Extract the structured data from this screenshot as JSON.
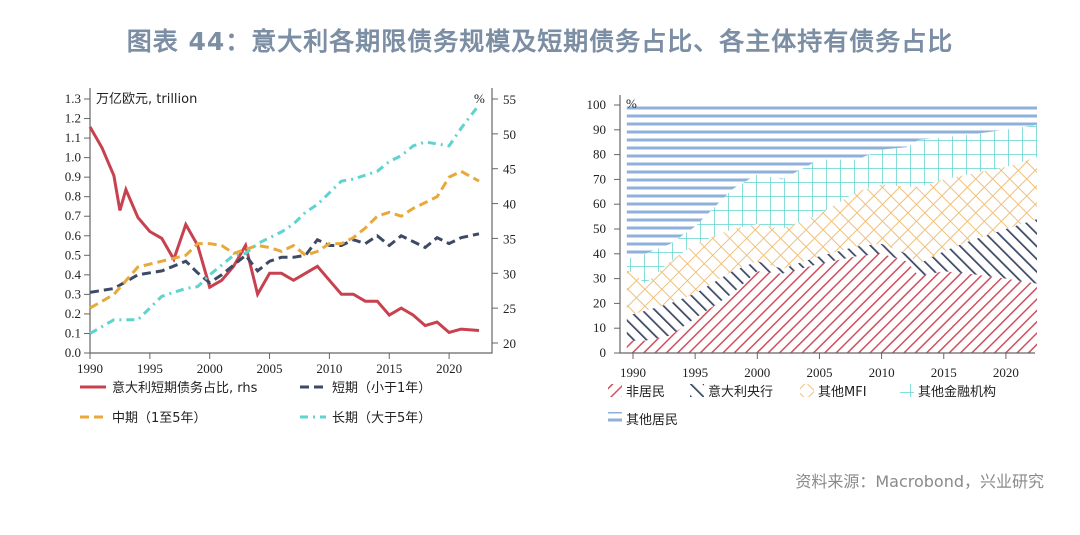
{
  "title": "图表 44：意大利各期限债务规模及短期债务占比、各主体持有债务占比",
  "source": "资料来源：Macrobond，兴业研究",
  "chart_data": [
    {
      "type": "line",
      "unit_left": "万亿欧元, trillion",
      "unit_right": "%",
      "xlim": [
        1990,
        2023
      ],
      "ylim_left": [
        0,
        1.3
      ],
      "ylim_right": [
        20,
        55
      ],
      "x_ticks": [
        "1990",
        "1995",
        "2000",
        "2005",
        "2010",
        "2015",
        "2020"
      ],
      "y_ticks_left": [
        "0.0",
        "0.1",
        "0.2",
        "0.3",
        "0.4",
        "0.5",
        "0.6",
        "0.7",
        "0.8",
        "0.9",
        "1.0",
        "1.1",
        "1.2",
        "1.3"
      ],
      "y_ticks_right": [
        "20",
        "25",
        "30",
        "35",
        "40",
        "45",
        "50",
        "55"
      ],
      "series": [
        {
          "name": "意大利短期债务占比, rhs",
          "axis": "right",
          "color": "#c8414f",
          "dash": "solid",
          "x": [
            1990,
            1991,
            1992,
            1992.5,
            1993,
            1994,
            1995,
            1996,
            1997,
            1998,
            1999,
            2000,
            2001,
            2002,
            2003,
            2004,
            2005,
            2006,
            2007,
            2008,
            2009,
            2010,
            2011,
            2012,
            2013,
            2014,
            2015,
            2016,
            2017,
            2018,
            2019,
            2020,
            2021,
            2022.5
          ],
          "y": [
            51,
            48,
            44,
            39,
            42,
            38,
            36,
            35,
            32,
            37,
            34,
            28,
            29,
            31,
            34,
            27,
            30,
            30,
            29,
            30,
            31,
            29,
            27,
            27,
            26,
            26,
            24,
            25,
            24,
            22.5,
            23,
            21.5,
            22,
            21.8
          ]
        },
        {
          "name": "短期（小于1年）",
          "axis": "left",
          "color": "#3d4a66",
          "dash": "dash",
          "x": [
            1990,
            1992,
            1994,
            1996,
            1998,
            1999,
            2000,
            2001,
            2002,
            2003,
            2004,
            2005,
            2006,
            2007,
            2008,
            2009,
            2010,
            2011,
            2012,
            2013,
            2014,
            2015,
            2016,
            2017,
            2018,
            2019,
            2020,
            2021,
            2022.5
          ],
          "y": [
            0.31,
            0.33,
            0.4,
            0.42,
            0.47,
            0.41,
            0.36,
            0.4,
            0.45,
            0.5,
            0.42,
            0.47,
            0.49,
            0.49,
            0.5,
            0.58,
            0.55,
            0.55,
            0.58,
            0.56,
            0.6,
            0.55,
            0.6,
            0.57,
            0.54,
            0.59,
            0.56,
            0.59,
            0.61
          ]
        },
        {
          "name": "中期（1至5年）",
          "axis": "left",
          "color": "#e8a93a",
          "dash": "dash",
          "x": [
            1990,
            1992,
            1994,
            1996,
            1998,
            1999,
            2000,
            2001,
            2002,
            2003,
            2004,
            2005,
            2006,
            2007,
            2008,
            2009,
            2010,
            2011,
            2012,
            2013,
            2014,
            2015,
            2016,
            2017,
            2018,
            2019,
            2020,
            2021,
            2022.5
          ],
          "y": [
            0.23,
            0.3,
            0.44,
            0.47,
            0.5,
            0.56,
            0.56,
            0.55,
            0.51,
            0.53,
            0.55,
            0.54,
            0.52,
            0.55,
            0.5,
            0.52,
            0.56,
            0.56,
            0.59,
            0.64,
            0.7,
            0.72,
            0.7,
            0.74,
            0.77,
            0.8,
            0.9,
            0.93,
            0.88
          ]
        },
        {
          "name": "长期（大于5年）",
          "axis": "left",
          "color": "#5fd3cf",
          "dash": "dashdot",
          "x": [
            1990,
            1992,
            1994,
            1996,
            1998,
            1999,
            2000,
            2001,
            2002,
            2003,
            2004,
            2005,
            2006,
            2007,
            2008,
            2009,
            2010,
            2011,
            2012,
            2013,
            2014,
            2015,
            2016,
            2017,
            2018,
            2019,
            2020,
            2021,
            2022.5
          ],
          "y": [
            0.1,
            0.17,
            0.17,
            0.29,
            0.33,
            0.34,
            0.4,
            0.45,
            0.5,
            0.51,
            0.56,
            0.59,
            0.62,
            0.66,
            0.72,
            0.76,
            0.82,
            0.88,
            0.89,
            0.91,
            0.93,
            0.98,
            1.01,
            1.06,
            1.08,
            1.07,
            1.06,
            1.15,
            1.27
          ]
        }
      ]
    },
    {
      "type": "area",
      "stacked": true,
      "unit": "%",
      "xlim": [
        1989.5,
        2023
      ],
      "ylim": [
        0,
        100
      ],
      "x_ticks": [
        "1990",
        "1995",
        "2000",
        "2005",
        "2010",
        "2015",
        "2020"
      ],
      "y_ticks": [
        "0",
        "10",
        "20",
        "30",
        "40",
        "50",
        "60",
        "70",
        "80",
        "90",
        "100"
      ],
      "x": [
        1989.5,
        1991,
        1993,
        1995,
        1998,
        2000,
        2002,
        2005,
        2008,
        2010,
        2012,
        2013,
        2015,
        2017,
        2020,
        2022.5
      ],
      "series": [
        {
          "name": "非居民",
          "color": "#d0505e",
          "pattern": "diagonal-down",
          "values": [
            5,
            5,
            7,
            14,
            24,
            33,
            32,
            36,
            39,
            40,
            37,
            31,
            33,
            32,
            30,
            28
          ]
        },
        {
          "name": "意大利央行",
          "color": "#3d4a66",
          "pattern": "diagonal-up",
          "values": [
            10,
            12,
            13,
            10,
            9,
            4,
            2,
            3,
            4,
            4,
            3,
            5,
            8,
            13,
            20,
            26
          ]
        },
        {
          "name": "其他MFI",
          "color": "#f0c07a",
          "pattern": "crosshatch",
          "values": [
            19,
            11,
            17,
            20,
            17,
            15,
            16,
            17,
            22,
            24,
            27,
            31,
            29,
            27,
            25,
            25
          ]
        },
        {
          "name": "其他金融机构",
          "color": "#5fd3cf",
          "pattern": "grid",
          "values": [
            4,
            12,
            7,
            7,
            16,
            20,
            20,
            22,
            13,
            14,
            16,
            19,
            17,
            16,
            15,
            13
          ]
        },
        {
          "name": "其他居民",
          "color": "#8fb0d8",
          "pattern": "horizontal",
          "values": [
            62,
            60,
            56,
            49,
            34,
            28,
            30,
            22,
            22,
            18,
            17,
            14,
            13,
            12,
            10,
            8
          ]
        }
      ]
    }
  ]
}
